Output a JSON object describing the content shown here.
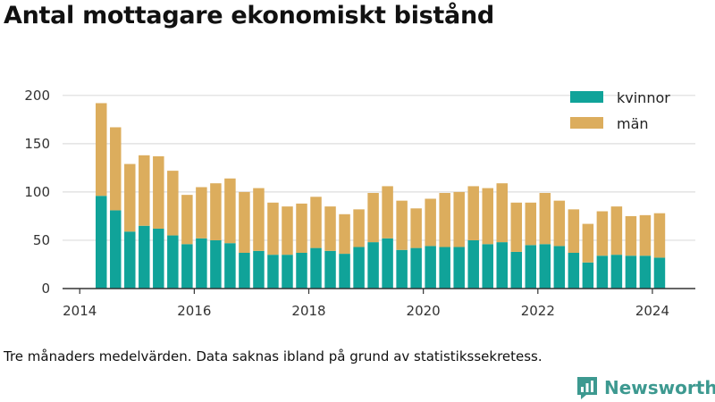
{
  "title": "Antal mottagare ekonomiskt bistånd",
  "footnote": "Tre månaders medelvärden. Data saknas ibland på grund av statistikssekretess.",
  "brand": "Newsworthy",
  "colors": {
    "kvinnor": "#10a399",
    "man": "#dcad5d",
    "grid": "#dddddd",
    "axis": "#333333",
    "brand": "#3d9990"
  },
  "chart_data": {
    "type": "bar",
    "stacked": true,
    "title": "Antal mottagare ekonomiskt bistånd",
    "xlabel": "",
    "ylabel": "",
    "ylim": [
      0,
      210
    ],
    "yticks": [
      0,
      50,
      100,
      150,
      200
    ],
    "xlim": [
      2013.7,
      2024.75
    ],
    "xticks": [
      2014,
      2016,
      2018,
      2020,
      2022,
      2024
    ],
    "grid": true,
    "legend": "top-right",
    "x": [
      2014.375,
      2014.625,
      2014.875,
      2015.125,
      2015.375,
      2015.625,
      2015.875,
      2016.125,
      2016.375,
      2016.625,
      2016.875,
      2017.125,
      2017.375,
      2017.625,
      2017.875,
      2018.125,
      2018.375,
      2018.625,
      2018.875,
      2019.125,
      2019.375,
      2019.625,
      2019.875,
      2020.125,
      2020.375,
      2020.625,
      2020.875,
      2021.125,
      2021.375,
      2021.625,
      2021.875,
      2022.125,
      2022.375,
      2022.625,
      2022.875,
      2023.125,
      2023.375,
      2023.625,
      2023.875,
      2024.125
    ],
    "series": [
      {
        "name": "kvinnor",
        "color": "#10a399",
        "values": [
          96,
          81,
          59,
          65,
          62,
          55,
          46,
          52,
          50,
          47,
          37,
          39,
          35,
          35,
          37,
          42,
          39,
          36,
          43,
          48,
          52,
          40,
          42,
          44,
          43,
          43,
          50,
          46,
          48,
          38,
          45,
          46,
          44,
          37,
          27,
          34,
          35,
          34,
          34,
          32
        ]
      },
      {
        "name": "män",
        "color": "#dcad5d",
        "values": [
          96,
          86,
          70,
          73,
          75,
          67,
          51,
          53,
          59,
          67,
          63,
          65,
          54,
          50,
          51,
          53,
          46,
          41,
          39,
          51,
          54,
          51,
          41,
          49,
          56,
          57,
          56,
          58,
          61,
          51,
          44,
          53,
          47,
          45,
          40,
          46,
          50,
          41,
          42,
          46
        ]
      }
    ]
  }
}
